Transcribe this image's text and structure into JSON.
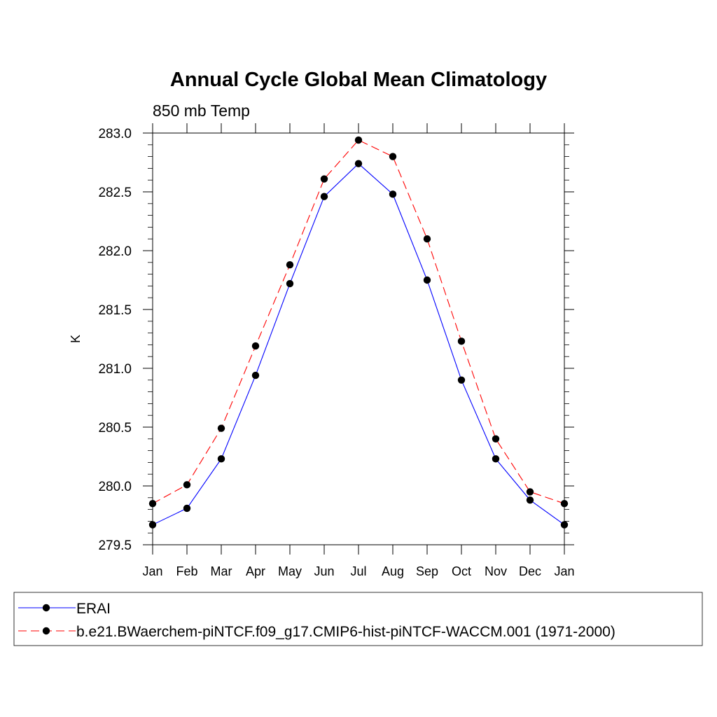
{
  "chart_data": {
    "type": "line",
    "title": "Annual Cycle Global Mean Climatology",
    "subtitle": "850 mb Temp",
    "ylabel": "K",
    "xlabel": "",
    "categories": [
      "Jan",
      "Feb",
      "Mar",
      "Apr",
      "May",
      "Jun",
      "Jul",
      "Aug",
      "Sep",
      "Oct",
      "Nov",
      "Dec",
      "Jan"
    ],
    "ylim": [
      279.5,
      283.0
    ],
    "yticks": [
      "279.5",
      "280.0",
      "280.5",
      "281.0",
      "281.5",
      "282.0",
      "282.5",
      "283.0"
    ],
    "series": [
      {
        "name": "ERAI",
        "color": "#0000ff",
        "dash": "solid",
        "values": [
          279.67,
          279.81,
          280.23,
          280.94,
          281.72,
          282.46,
          282.74,
          282.48,
          281.75,
          280.9,
          280.23,
          279.88,
          279.67
        ]
      },
      {
        "name": "b.e21.BWaerchem-piNTCF.f09_g17.CMIP6-hist-piNTCF-WACCM.001 (1971-2000)",
        "color": "#ff0000",
        "dash": "dashed",
        "values": [
          279.85,
          280.01,
          280.49,
          281.19,
          281.88,
          282.61,
          282.94,
          282.8,
          282.1,
          281.23,
          280.4,
          279.95,
          279.85
        ]
      }
    ],
    "legend_position": "bottom"
  }
}
